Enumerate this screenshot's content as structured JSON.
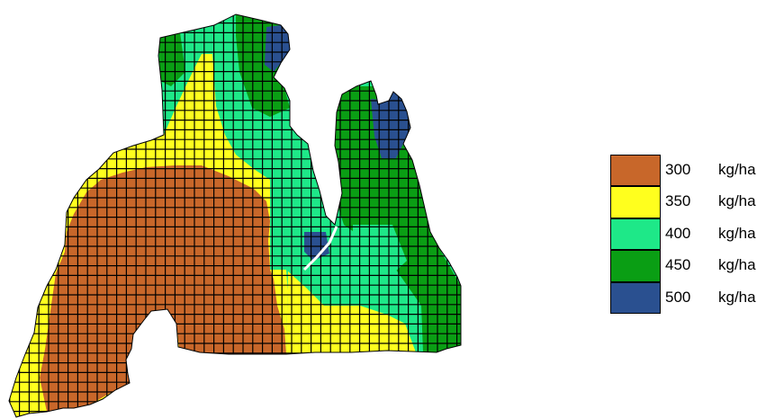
{
  "map": {
    "zone_colors": {
      "z300": "#C8672A",
      "z350": "#FFFF1E",
      "z400": "#1EE888",
      "z450": "#0A9E14",
      "z500": "#2A5090",
      "grid": "#000000",
      "background": "#ffffff"
    }
  },
  "legend": {
    "items": [
      {
        "value": "300",
        "unit": "kg/ha",
        "color": "#C8672A"
      },
      {
        "value": "350",
        "unit": "kg/ha",
        "color": "#FFFF1E"
      },
      {
        "value": "400",
        "unit": "kg/ha",
        "color": "#1EE888"
      },
      {
        "value": "450",
        "unit": "kg/ha",
        "color": "#0A9E14"
      },
      {
        "value": "500",
        "unit": "kg/ha",
        "color": "#2A5090"
      }
    ]
  }
}
